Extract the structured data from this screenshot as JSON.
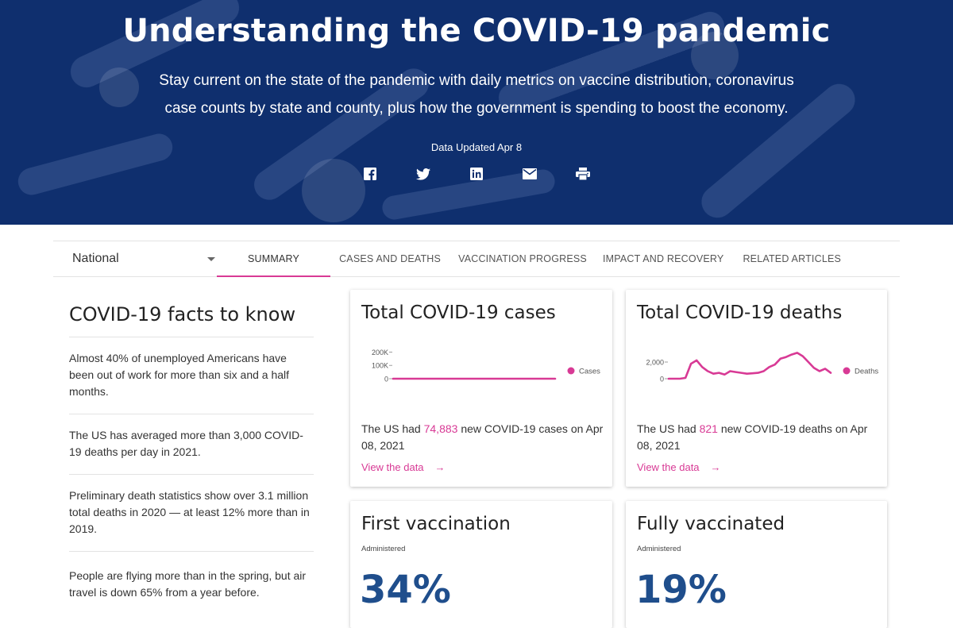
{
  "hero": {
    "title": "Understanding the COVID-19 pandemic",
    "subtitle": "Stay current on the state of the pandemic with daily metrics on vaccine distribution, coronavirus case counts by state and county, plus how the government is spending to boost the economy.",
    "updated": "Data Updated Apr 8",
    "share_icons": [
      "facebook-icon",
      "twitter-icon",
      "linkedin-icon",
      "email-icon",
      "print-icon"
    ],
    "bg_color": "#0f2f6e"
  },
  "nav": {
    "region_select": "National",
    "tabs": [
      {
        "label": "SUMMARY",
        "active": true
      },
      {
        "label": "CASES AND DEATHS",
        "active": false
      },
      {
        "label": "VACCINATION PROGRESS",
        "active": false
      },
      {
        "label": "IMPACT AND RECOVERY",
        "active": false
      },
      {
        "label": "RELATED ARTICLES",
        "active": false
      }
    ],
    "accent": "#d83a95"
  },
  "facts": {
    "title": "COVID-19 facts to know",
    "items": [
      "Almost 40% of unemployed Americans have been out of work for more than six and a half months.",
      "The US has averaged more than 3,000 COVID-19 deaths per day in 2021.",
      "Preliminary death statistics show over 3.1 million total deaths in 2020 — at least 12% more than in 2019.",
      "People are flying more than in the spring, but air travel is down 65% from a year before."
    ]
  },
  "cards": {
    "cases": {
      "title": "Total COVID-19 cases",
      "desc_pre": "The US had ",
      "desc_value": "74,883",
      "desc_post": " new COVID-19 cases on Apr 08, 2021",
      "link": "View the data",
      "arrow": "→"
    },
    "deaths": {
      "title": "Total COVID-19 deaths",
      "desc_pre": "The US had ",
      "desc_value": "821",
      "desc_post": " new COVID-19 deaths on Apr 08, 2021",
      "link": "View the data",
      "arrow": "→"
    },
    "first_vax": {
      "title": "First vaccination",
      "label": "Administered",
      "value": "34%"
    },
    "full_vax": {
      "title": "Fully vaccinated",
      "label": "Administered",
      "value": "19%"
    }
  },
  "chart_data": [
    {
      "type": "line",
      "series": [
        {
          "name": "Cases",
          "values": [
            0,
            0,
            5,
            20,
            30,
            35,
            30,
            28,
            30,
            45,
            70,
            55,
            50,
            48,
            55,
            65,
            90,
            150,
            195,
            230,
            200,
            160,
            110,
            90,
            75,
            65,
            70,
            60,
            75
          ]
        }
      ],
      "yticks": [
        "200K",
        "100K",
        "0"
      ],
      "ylim": [
        0,
        250000
      ],
      "color": "#d83a95"
    },
    {
      "type": "line",
      "series": [
        {
          "name": "Deaths",
          "values": [
            0,
            0,
            0,
            100,
            1800,
            2200,
            1400,
            900,
            600,
            700,
            500,
            900,
            800,
            700,
            600,
            650,
            700,
            900,
            1400,
            1700,
            2400,
            2600,
            2900,
            3100,
            2700,
            2000,
            1300,
            900,
            1200,
            700
          ]
        }
      ],
      "yticks": [
        "2,000",
        "0"
      ],
      "ylim": [
        0,
        4000
      ],
      "color": "#d83a95"
    }
  ]
}
